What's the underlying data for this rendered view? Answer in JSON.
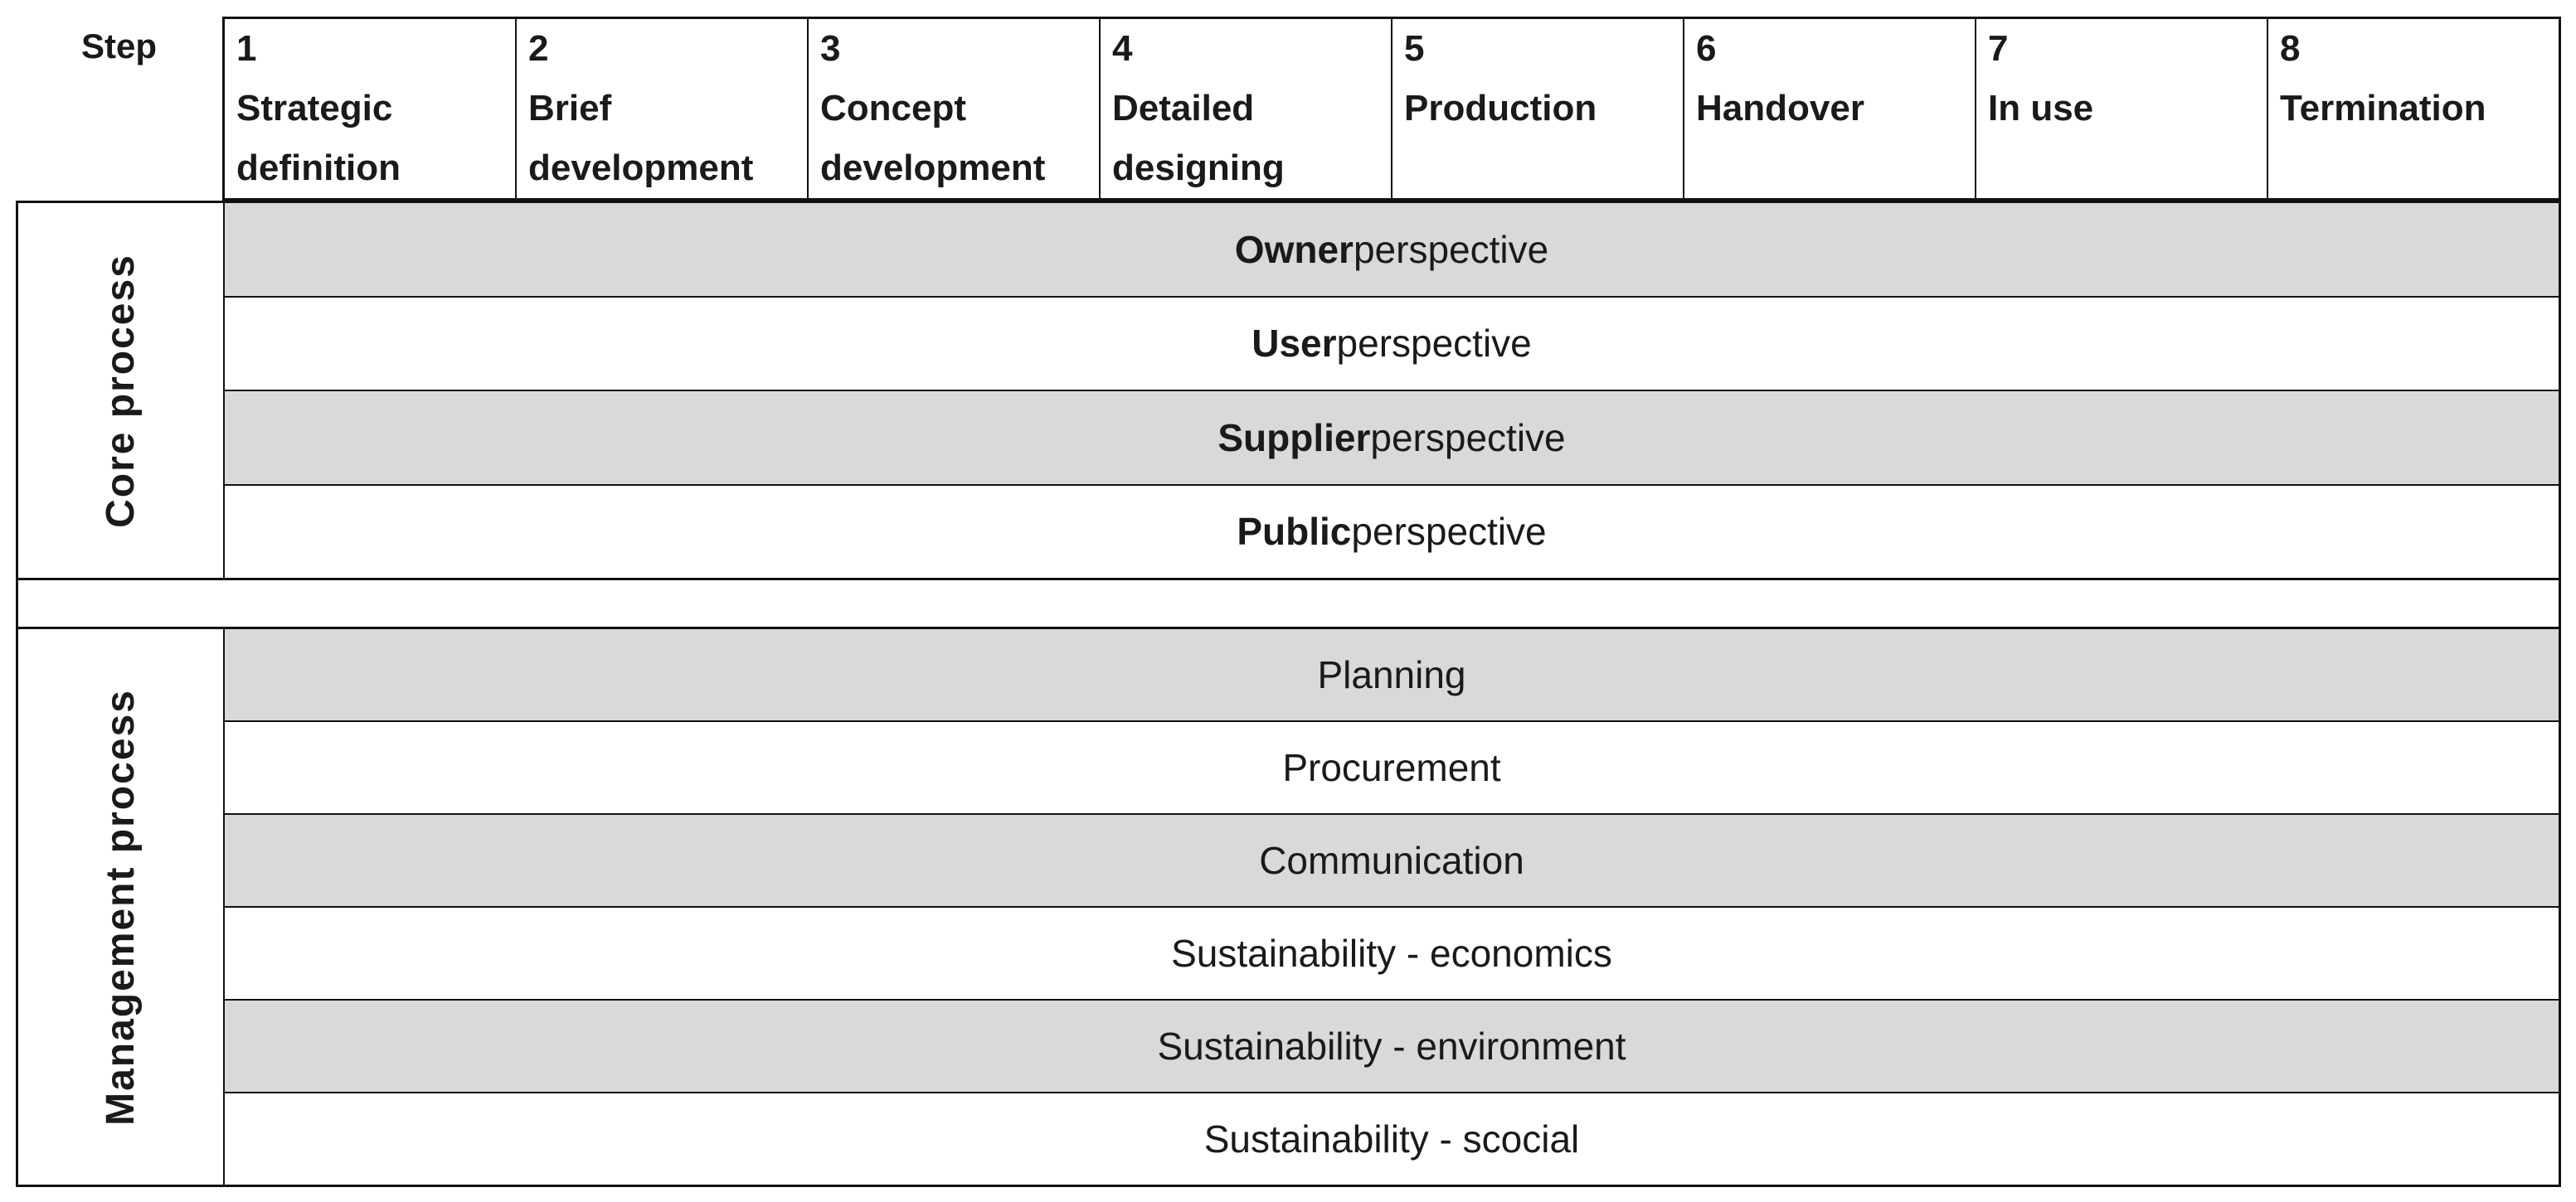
{
  "header": {
    "step_label": "Step",
    "columns": [
      {
        "number": "1",
        "name": "Strategic definition"
      },
      {
        "number": "2",
        "name": "Brief development"
      },
      {
        "number": "3",
        "name": "Concept development"
      },
      {
        "number": "4",
        "name": "Detailed designing"
      },
      {
        "number": "5",
        "name": "Production"
      },
      {
        "number": "6",
        "name": "Handover"
      },
      {
        "number": "7",
        "name": "In use"
      },
      {
        "number": "8",
        "name": "Termination"
      }
    ]
  },
  "core_process": {
    "label": "Core process",
    "rows": [
      {
        "bold": "Owner",
        "rest": " perspective",
        "shaded": true
      },
      {
        "bold": "User",
        "rest": " perspective",
        "shaded": false
      },
      {
        "bold": "Supplier",
        "rest": " perspective",
        "shaded": true
      },
      {
        "bold": "Public",
        "rest": " perspective",
        "shaded": false
      }
    ]
  },
  "management_process": {
    "label": "Management process",
    "rows": [
      {
        "text": "Planning",
        "shaded": true
      },
      {
        "text": "Procurement",
        "shaded": false
      },
      {
        "text": "Communication",
        "shaded": true
      },
      {
        "text": "Sustainability - economics",
        "shaded": false
      },
      {
        "text": "Sustainability - environment",
        "shaded": true
      },
      {
        "text": "Sustainability - scocial",
        "shaded": false
      }
    ]
  },
  "colors": {
    "shaded_row": "#d9d9d9",
    "border": "#1a1a1a",
    "text": "#1a1a1a",
    "background": "#ffffff"
  }
}
